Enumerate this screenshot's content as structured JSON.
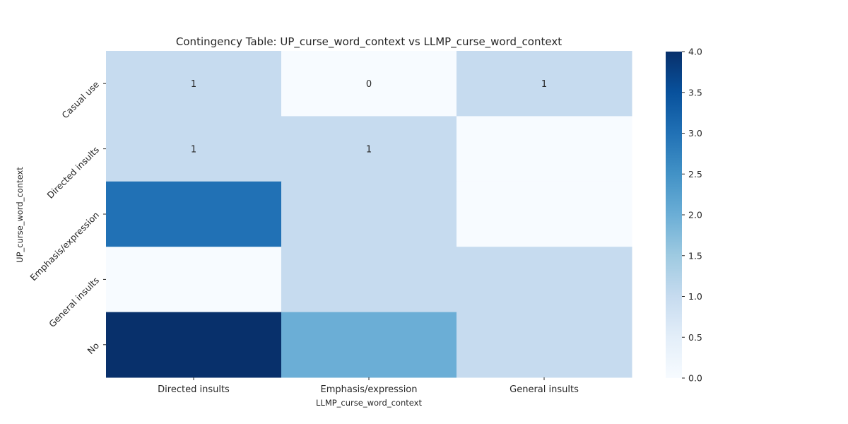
{
  "chart_data": {
    "type": "heatmap",
    "title": "Contingency Table: UP_curse_word_context vs LLMP_curse_word_context",
    "xlabel": "LLMP_curse_word_context",
    "ylabel": "UP_curse_word_context",
    "x_categories": [
      "Directed insults",
      "Emphasis/expression",
      "General insults"
    ],
    "y_categories": [
      "Casual use",
      "Directed insults",
      "Emphasis/expression",
      "General insults",
      "No"
    ],
    "values": [
      [
        1,
        0,
        1
      ],
      [
        1,
        1,
        0
      ],
      [
        3,
        1,
        0
      ],
      [
        0,
        1,
        1
      ],
      [
        4,
        2,
        1
      ]
    ],
    "annotated_cells": [
      [
        0,
        0
      ],
      [
        0,
        1
      ],
      [
        0,
        2
      ],
      [
        1,
        0
      ],
      [
        1,
        1
      ]
    ],
    "colorscale": "Blues",
    "color_range": [
      0,
      4
    ],
    "colorbar_ticks": [
      "0.0",
      "0.5",
      "1.0",
      "1.5",
      "2.0",
      "2.5",
      "3.0",
      "3.5",
      "4.0"
    ],
    "grid": false
  }
}
